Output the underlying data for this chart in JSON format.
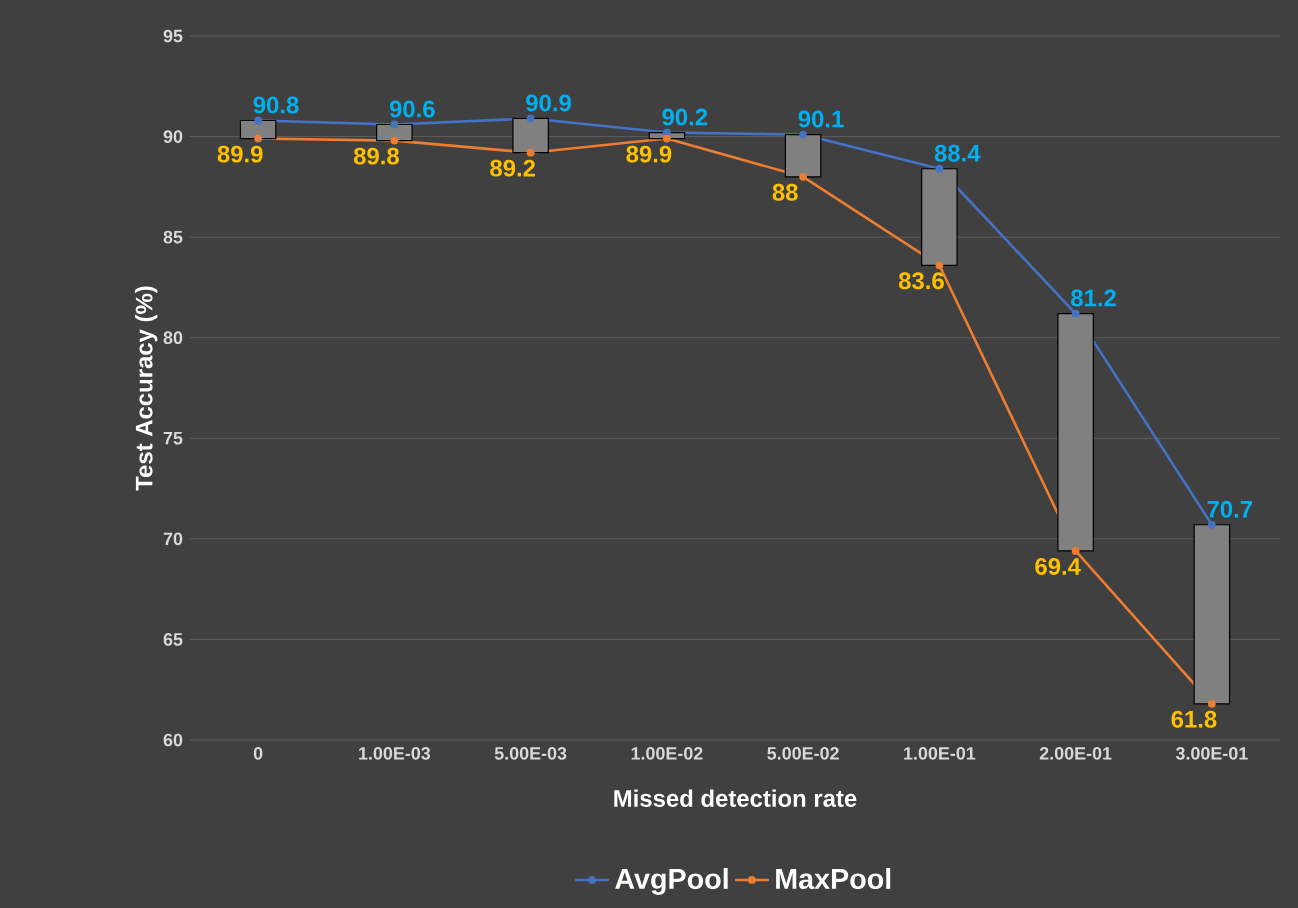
{
  "chart_data": {
    "type": "line",
    "xlabel": "Missed detection rate",
    "ylabel": "Test Accuracy (%)",
    "categories": [
      "0",
      "1.00E-03",
      "5.00E-03",
      "1.00E-02",
      "5.00E-02",
      "1.00E-01",
      "2.00E-01",
      "3.00E-01"
    ],
    "series": [
      {
        "name": "AvgPool",
        "color": "#4472c4",
        "values": [
          90.8,
          90.6,
          90.9,
          90.2,
          90.1,
          88.4,
          81.2,
          70.7
        ]
      },
      {
        "name": "MaxPool",
        "color": "#ed7d31",
        "values": [
          89.9,
          89.8,
          89.2,
          89.9,
          88,
          83.6,
          69.4,
          61.8
        ]
      },
      {
        "type": "bar",
        "color": "#808080",
        "base": [
          89.9,
          89.8,
          89.2,
          89.9,
          88,
          83.6,
          69.4,
          61.8
        ],
        "values": [
          0.9,
          0.8,
          1.7,
          0.3,
          2.1,
          4.8,
          11.8,
          8.9
        ],
        "value_labels": [
          null,
          null,
          null,
          null,
          null,
          null,
          null,
          null
        ]
      }
    ],
    "ylim": [
      60,
      95
    ],
    "yticks": [
      60,
      65,
      70,
      75,
      80,
      85,
      90,
      95
    ],
    "grid": "y",
    "legend": "bottom",
    "marker": "circle",
    "data_labels": true
  }
}
